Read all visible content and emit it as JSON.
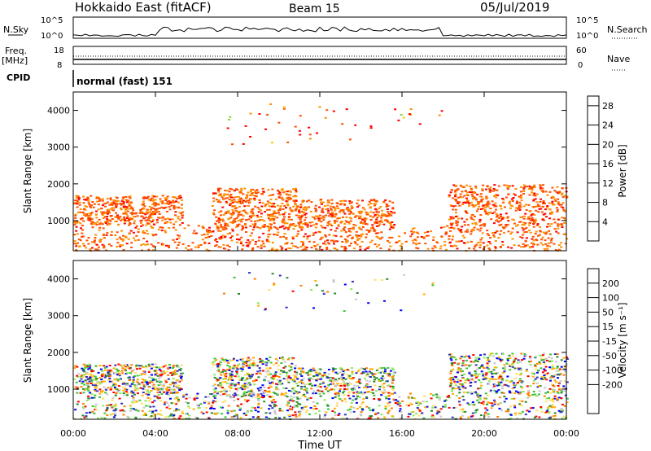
{
  "header": {
    "station": "Hokkaido East (fitACF)",
    "beam": "Beam 15",
    "date": "05/Jul/2019"
  },
  "top_panel": {
    "nsky_label": "N.Sky",
    "nsearch_label": "N.Search",
    "left_ticks": [
      "10^5",
      "10^0"
    ],
    "right_ticks": [
      "10^5",
      "10^0"
    ],
    "freq_label_1": "Freq.",
    "freq_label_2": "[MHz]",
    "freq_ticks": [
      "18",
      "8"
    ],
    "nave_label": "Nave",
    "nave_ticks": [
      "60",
      "0"
    ],
    "cpid_label": "CPID",
    "cpid_value": "normal (fast) 151"
  },
  "colors": {
    "velocity_scale": [
      "#ff0000",
      "#ff7f00",
      "#ffb000",
      "#ffe060",
      "#c8c8c8",
      "#8de85a",
      "#3cc43c",
      "#2a8a2a",
      "#3030c0",
      "#0000ff"
    ],
    "power_scale": [
      "#0000ff",
      "#4040a0",
      "#2f7f4f",
      "#40a040",
      "#90d040",
      "#f0d000",
      "#ff9000",
      "#ff5000",
      "#ff0000"
    ]
  },
  "chart_data": [
    {
      "type": "heatmap",
      "title": "",
      "xlabel": "Time UT",
      "ylabel": "Slant Range [km]",
      "x_ticks": [
        "00:00",
        "04:00",
        "08:00",
        "12:00",
        "16:00",
        "20:00",
        "00:00"
      ],
      "y_ticks": [
        1000,
        2000,
        3000,
        4000
      ],
      "ylim": [
        180,
        4500
      ],
      "colorbar_label": "Power [dB]",
      "colorbar_ticks": [
        4,
        8,
        12,
        16,
        20,
        24,
        28
      ],
      "colorbar_range": [
        0,
        30
      ]
    },
    {
      "type": "heatmap",
      "title": "",
      "xlabel": "Time UT",
      "ylabel": "Slant Range [km]",
      "x_ticks": [
        "00:00",
        "04:00",
        "08:00",
        "12:00",
        "16:00",
        "20:00",
        "00:00"
      ],
      "y_ticks": [
        1000,
        2000,
        3000,
        4000
      ],
      "ylim": [
        180,
        4500
      ],
      "colorbar_label": "Velocity [m s⁻¹]",
      "colorbar_ticks": [
        200,
        100,
        50,
        15,
        -15,
        -50,
        -100,
        -200
      ]
    }
  ]
}
